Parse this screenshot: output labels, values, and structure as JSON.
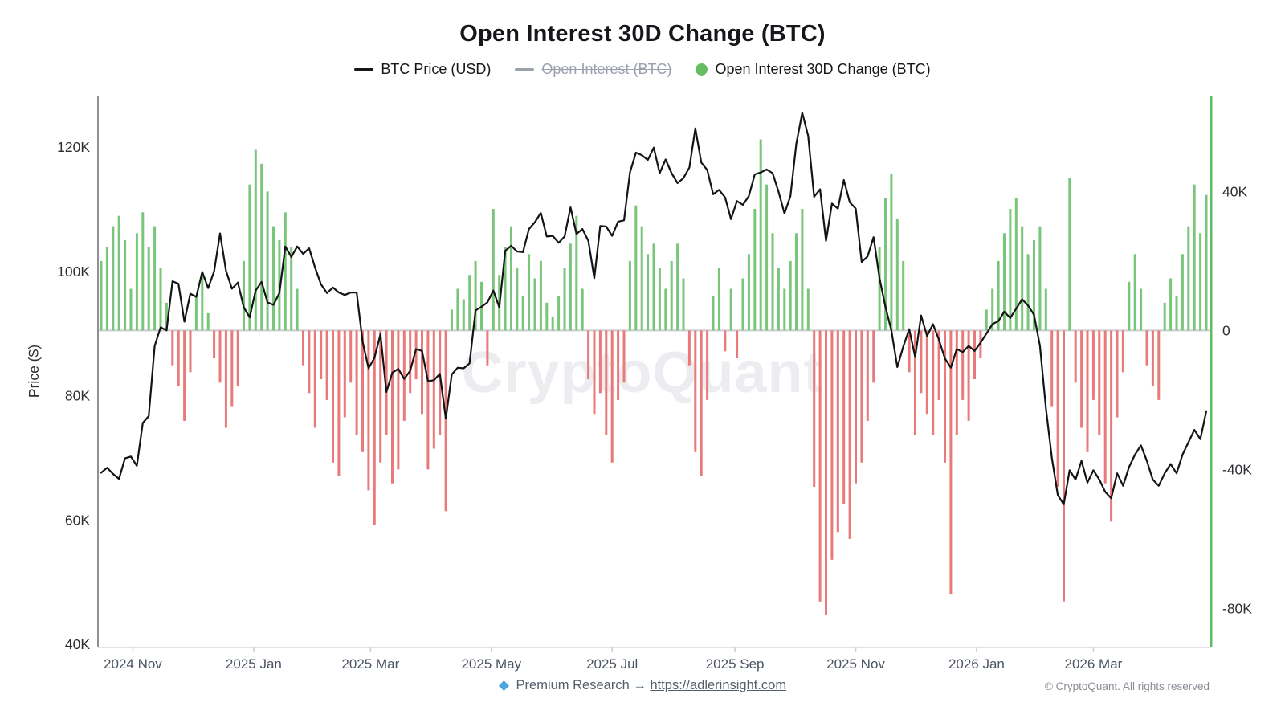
{
  "title": "Open Interest 30D Change (BTC)",
  "legend": {
    "items": [
      {
        "label": "BTC Price (USD)",
        "marker": "line",
        "color": "#15171a",
        "disabled": false
      },
      {
        "label": "Open Interest (BTC)",
        "marker": "line",
        "color": "#9aa1ad",
        "disabled": true
      },
      {
        "label": "Open Interest 30D Change (BTC)",
        "marker": "dot",
        "color": "#66bd63",
        "disabled": false
      }
    ]
  },
  "watermark": "CryptoQuant",
  "footer": {
    "diamond_icon": "◆",
    "premium_text": "Premium Research →",
    "link_text": "https://adlerinsight.com",
    "copyright": "© CryptoQuant. All rights reserved"
  },
  "chart_data": {
    "type": "mixed",
    "title": "Open Interest 30D Change (BTC)",
    "ylabel_left": "Price ($)",
    "grid": false,
    "legend_position": "top",
    "hidden_series_note": "Open Interest (BTC) is toggled off (struck through in legend)",
    "x": {
      "start_date": "2024-10-16",
      "step_days": 3,
      "tick_labels": [
        "2024 Nov",
        "2025 Jan",
        "2025 Mar",
        "2025 May",
        "2025 Jul",
        "2025 Sep",
        "2025 Nov",
        "2026 Jan",
        "2026 Mar"
      ],
      "tick_t": [
        5.33,
        25.67,
        45.33,
        65.67,
        86.0,
        106.67,
        127.0,
        147.33,
        167.0
      ]
    },
    "y_left": {
      "label": "Price ($)",
      "tick_labels": [
        "40K",
        "60K",
        "80K",
        "100K",
        "120K"
      ],
      "tick_values": [
        40,
        60,
        80,
        100,
        120
      ],
      "unit": "USD thousands",
      "range": [
        40,
        128.1
      ]
    },
    "y_right": {
      "tick_labels": [
        "-80K",
        "-40K",
        "0",
        "40K"
      ],
      "tick_values": [
        -80,
        -40,
        0,
        40
      ],
      "unit": "BTC thousands",
      "range": [
        -91.3,
        67.3
      ]
    },
    "colors": {
      "price_line": "#141414",
      "bar_positive": "#79c67b",
      "bar_negative": "#ea7a7a",
      "right_axis": "#60bc62",
      "left_axis": "#8f8f98",
      "bottom_axis": "#d8d8dd",
      "zero_line": "#cccdd2",
      "watermark": "#ededf1",
      "tick_label": "#2d2f33",
      "x_label": "#4b5563"
    },
    "series": [
      {
        "name": "BTC Price (USD)",
        "type": "line",
        "axis": "left",
        "unit": "K USD",
        "values": [
          67.6,
          68.4,
          67.4,
          66.6,
          69.9,
          70.2,
          68.7,
          75.6,
          76.7,
          88.0,
          91.0,
          90.5,
          98.4,
          98.0,
          91.9,
          96.4,
          95.9,
          99.9,
          97.3,
          100.0,
          106.1,
          100.1,
          97.2,
          98.2,
          94.2,
          92.6,
          96.9,
          98.3,
          95.0,
          94.6,
          96.5,
          104.0,
          102.3,
          104.0,
          102.8,
          103.7,
          100.6,
          97.9,
          96.5,
          97.4,
          96.6,
          96.2,
          96.6,
          96.6,
          88.7,
          84.4,
          86.1,
          89.9,
          80.6,
          83.7,
          84.3,
          82.7,
          84.0,
          87.5,
          87.2,
          82.3,
          82.5,
          83.5,
          76.3,
          83.4,
          84.5,
          84.4,
          85.2,
          93.7,
          94.3,
          95.0,
          96.9,
          94.2,
          103.3,
          104.1,
          103.2,
          103.1,
          106.8,
          107.9,
          109.4,
          105.6,
          105.7,
          104.6,
          105.6,
          110.3,
          106.0,
          106.8,
          104.9,
          98.9,
          107.3,
          107.2,
          105.7,
          108.0,
          108.2,
          115.9,
          119.1,
          118.7,
          117.9,
          119.9,
          115.8,
          118.0,
          115.8,
          114.2,
          115.0,
          116.7,
          123.0,
          117.5,
          116.3,
          112.4,
          113.1,
          111.9,
          108.4,
          111.3,
          110.7,
          112.1,
          115.6,
          115.9,
          116.4,
          115.8,
          112.8,
          109.3,
          112.1,
          120.5,
          125.5,
          121.8,
          112.0,
          113.2,
          104.9,
          110.9,
          110.1,
          114.7,
          111.1,
          110.1,
          101.5,
          102.4,
          105.5,
          98.9,
          94.3,
          90.5,
          84.6,
          87.9,
          90.7,
          86.2,
          92.9,
          89.6,
          91.5,
          89.0,
          86.0,
          84.5,
          87.5,
          87.0,
          88.0,
          87.2,
          88.5,
          90.0,
          91.5,
          92.0,
          93.5,
          92.5,
          94.0,
          95.5,
          94.5,
          93.0,
          88.0,
          78.0,
          70.0,
          64.0,
          62.5,
          68.0,
          66.5,
          69.5,
          66.0,
          68.0,
          66.5,
          64.5,
          63.5,
          67.5,
          65.5,
          68.5,
          70.5,
          72.0,
          69.5,
          66.5,
          65.5,
          67.5,
          69.0,
          67.5,
          70.5,
          72.5,
          74.5,
          73.0,
          77.5
        ]
      },
      {
        "name": "Open Interest 30D Change (BTC)",
        "type": "bar",
        "axis": "right",
        "unit": "K BTC",
        "values": [
          20,
          24,
          30,
          33,
          26,
          12,
          28,
          34,
          24,
          30,
          18,
          8,
          -10,
          -16,
          -26,
          -12,
          10,
          16,
          5,
          -8,
          -15,
          -28,
          -22,
          -16,
          20,
          42,
          52,
          48,
          40,
          30,
          26,
          34,
          24,
          12,
          -10,
          -18,
          -28,
          -14,
          -20,
          -38,
          -42,
          -25,
          -15,
          -30,
          -35,
          -46,
          -56,
          -38,
          -30,
          -44,
          -40,
          -26,
          -18,
          -14,
          -24,
          -40,
          -34,
          -30,
          -52,
          6,
          12,
          9,
          16,
          20,
          14,
          -10,
          35,
          16,
          24,
          30,
          18,
          10,
          22,
          15,
          20,
          8,
          4,
          10,
          18,
          25,
          33,
          12,
          -14,
          -24,
          -18,
          -30,
          -38,
          -20,
          -15,
          20,
          36,
          30,
          22,
          25,
          18,
          12,
          20,
          25,
          15,
          -10,
          -35,
          -42,
          -20,
          10,
          18,
          -6,
          12,
          -8,
          15,
          22,
          35,
          55,
          42,
          28,
          18,
          12,
          20,
          28,
          35,
          12,
          -45,
          -78,
          -82,
          -66,
          -58,
          -50,
          -60,
          -44,
          -38,
          -26,
          -15,
          24,
          38,
          45,
          32,
          20,
          -12,
          -30,
          -18,
          -24,
          -30,
          -20,
          -38,
          -76,
          -30,
          -20,
          -26,
          -14,
          -8,
          6,
          12,
          20,
          28,
          35,
          38,
          30,
          22,
          26,
          30,
          12,
          -22,
          -45,
          -78,
          44,
          -15,
          -28,
          -35,
          -20,
          -30,
          -44,
          -55,
          -25,
          -12,
          14,
          22,
          12,
          -10,
          -16,
          -20,
          8,
          15,
          10,
          22,
          30,
          42,
          28,
          39
        ]
      }
    ]
  }
}
